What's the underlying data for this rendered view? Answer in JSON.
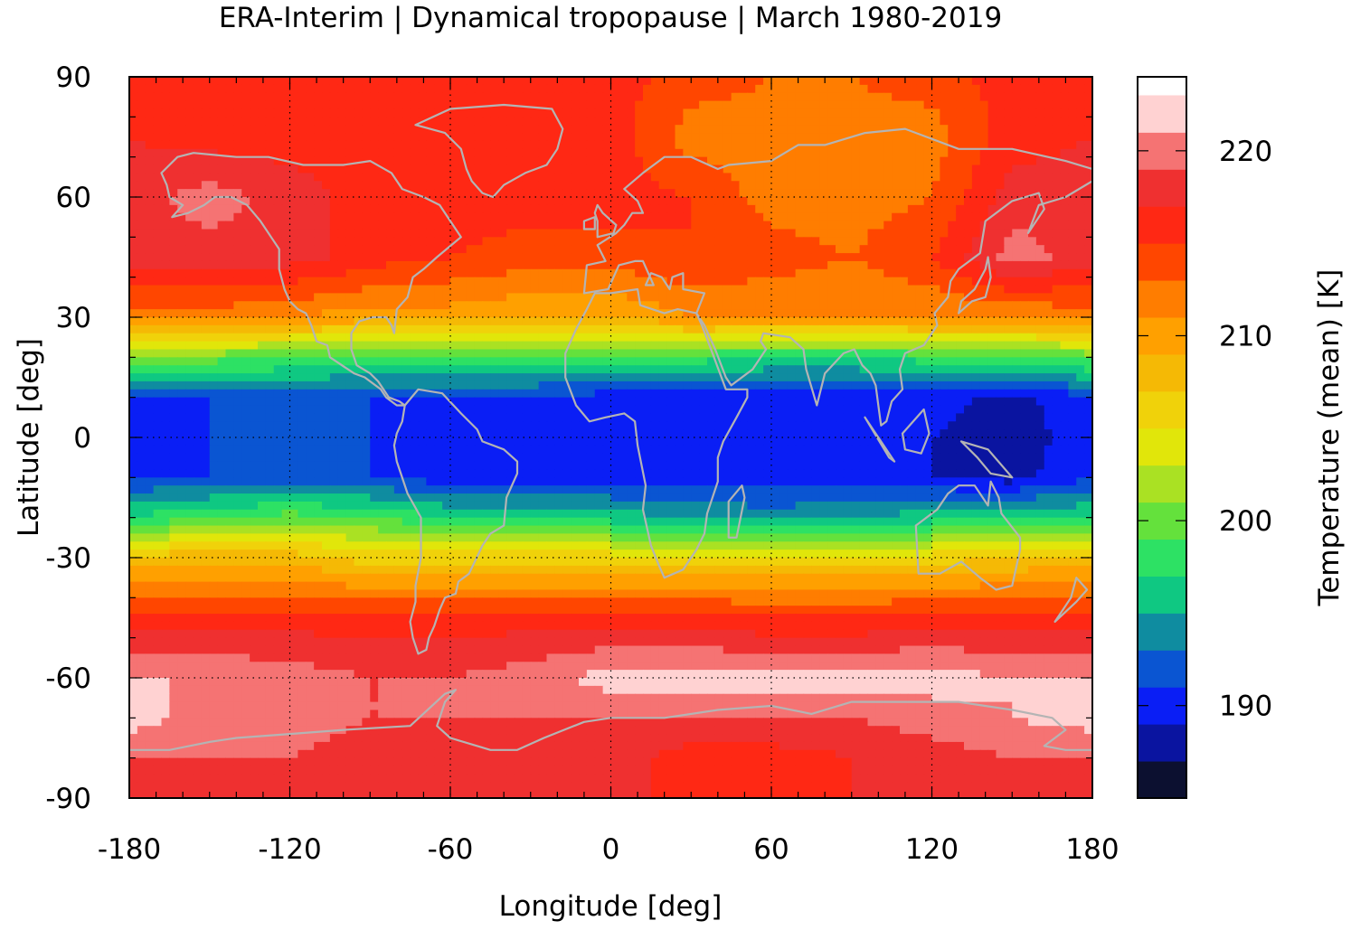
{
  "title": "ERA-Interim | Dynamical tropopause | March 1980-2019",
  "x_axis": {
    "label": "Longitude [deg]",
    "range": [
      -180,
      180
    ],
    "tick_values": [
      -180,
      -120,
      -60,
      0,
      60,
      120,
      180
    ],
    "tick_labels": [
      "-180",
      "-120",
      "-60",
      "0",
      "60",
      "120",
      "180"
    ]
  },
  "y_axis": {
    "label": "Latitude [deg]",
    "range": [
      -90,
      90
    ],
    "tick_values": [
      90,
      60,
      30,
      0,
      -30,
      -60,
      -90
    ],
    "tick_labels": [
      "90",
      "60",
      "30",
      "0",
      "-30",
      "-60",
      "-90"
    ]
  },
  "colorbar": {
    "label": "Temperature (mean) [K]",
    "range": [
      185,
      224
    ],
    "tick_values": [
      190,
      200,
      210,
      220
    ],
    "tick_labels": [
      "190",
      "200",
      "210",
      "220"
    ],
    "levels": [
      {
        "from": 185,
        "to": 187,
        "color": "#0c1030"
      },
      {
        "from": 187,
        "to": 189,
        "color": "#0a14a0"
      },
      {
        "from": 189,
        "to": 191,
        "color": "#0a1ef5"
      },
      {
        "from": 191,
        "to": 193,
        "color": "#0a55d2"
      },
      {
        "from": 193,
        "to": 195,
        "color": "#0f8ca0"
      },
      {
        "from": 195,
        "to": 197,
        "color": "#0fc882"
      },
      {
        "from": 197,
        "to": 199,
        "color": "#2de164"
      },
      {
        "from": 199,
        "to": 201,
        "color": "#64e13c"
      },
      {
        "from": 201,
        "to": 203,
        "color": "#aae123"
      },
      {
        "from": 203,
        "to": 205,
        "color": "#e1e60a"
      },
      {
        "from": 205,
        "to": 207,
        "color": "#f0d20a"
      },
      {
        "from": 207,
        "to": 209,
        "color": "#f5b905"
      },
      {
        "from": 209,
        "to": 211,
        "color": "#ffa000"
      },
      {
        "from": 211,
        "to": 213,
        "color": "#ff7d00"
      },
      {
        "from": 213,
        "to": 215,
        "color": "#ff4600"
      },
      {
        "from": 215,
        "to": 217,
        "color": "#ff2814"
      },
      {
        "from": 217,
        "to": 219,
        "color": "#ef3030"
      },
      {
        "from": 219,
        "to": 221,
        "color": "#f57373"
      },
      {
        "from": 221,
        "to": 223,
        "color": "#ffd2d2"
      }
    ]
  },
  "coastline_color": "#b4b4b4",
  "chart_data": {
    "type": "heatmap",
    "variable": "Temperature (mean) [K]",
    "grid": {
      "lon": [
        -180,
        -150,
        -120,
        -90,
        -60,
        -30,
        0,
        30,
        60,
        90,
        120,
        150,
        180
      ],
      "lat": [
        90,
        75,
        60,
        45,
        30,
        20,
        10,
        0,
        -10,
        -20,
        -30,
        -45,
        -60,
        -70,
        -80,
        -90
      ],
      "values": [
        [
          216,
          216,
          216,
          216,
          216,
          216,
          216,
          214,
          213,
          213,
          214,
          216,
          216
        ],
        [
          217,
          216,
          216,
          216,
          216,
          216,
          216,
          212,
          212,
          212,
          212,
          216,
          217
        ],
        [
          218,
          220,
          218,
          216,
          216,
          216,
          216,
          215,
          212,
          212,
          213,
          218,
          218
        ],
        [
          218,
          218,
          218,
          216,
          215,
          214,
          214,
          215,
          214,
          213,
          215,
          220,
          218
        ],
        [
          212,
          212,
          211,
          210,
          210,
          209,
          209,
          211,
          211,
          211,
          211,
          211,
          212
        ],
        [
          200,
          200,
          199,
          198,
          198,
          198,
          198,
          198,
          197,
          197,
          198,
          198,
          200
        ],
        [
          191,
          191,
          192,
          191,
          191,
          191,
          190,
          190,
          190,
          190,
          190,
          188,
          191
        ],
        [
          190,
          191,
          193,
          191,
          190,
          190,
          190,
          190,
          190,
          190,
          189,
          188,
          190
        ],
        [
          191,
          191,
          191,
          191,
          190,
          190,
          190,
          190,
          190,
          190,
          189,
          188,
          191
        ],
        [
          197,
          199,
          200,
          199,
          197,
          196,
          196,
          195,
          194,
          195,
          196,
          197,
          197
        ],
        [
          208,
          208,
          208,
          206,
          206,
          206,
          206,
          206,
          206,
          206,
          206,
          207,
          208
        ],
        [
          216,
          216,
          216,
          216,
          216,
          216,
          216,
          216,
          215,
          215,
          216,
          216,
          216
        ],
        [
          221,
          221,
          220,
          219,
          219,
          220,
          222,
          222,
          222,
          222,
          222,
          221,
          221
        ],
        [
          222,
          220,
          220,
          219,
          219,
          219,
          219,
          219,
          219,
          219,
          220,
          221,
          222
        ],
        [
          219,
          219,
          219,
          218,
          218,
          218,
          218,
          216,
          216,
          217,
          218,
          219,
          219
        ],
        [
          217,
          217,
          217,
          217,
          217,
          217,
          217,
          217,
          217,
          217,
          217,
          217,
          217
        ]
      ]
    }
  }
}
